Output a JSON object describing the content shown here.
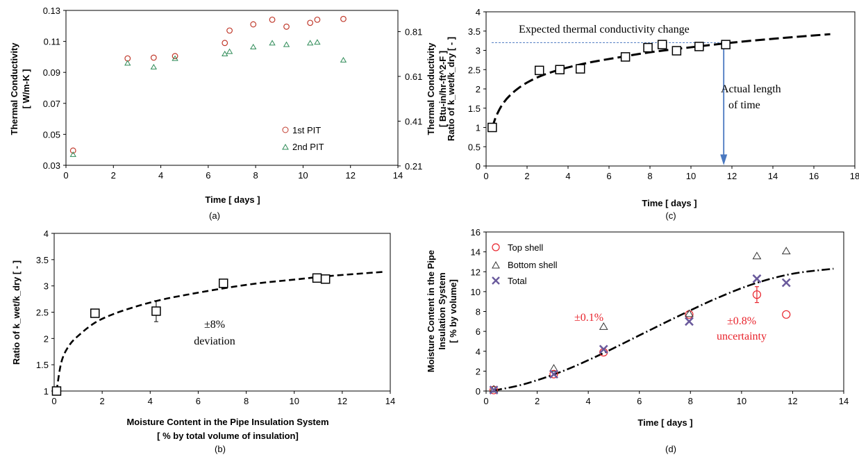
{
  "chart_data": [
    {
      "panel": "(a)",
      "type": "scatter",
      "xlabel": "Time [ days ]",
      "ylabel": "Thermal Conductivity [ W/m-K ]",
      "y2label": "Thermal Conductivity [ Btu-in/hr-ft^2-F ]",
      "xlim": [
        0,
        14
      ],
      "ylim": [
        0.03,
        0.13
      ],
      "xticks": [
        "0",
        "2",
        "4",
        "6",
        "8",
        "10",
        "12",
        "14"
      ],
      "yticks": [
        "0.03",
        "0.05",
        "0.07",
        "0.09",
        "0.11",
        "0.13"
      ],
      "y2ticks": [
        "0.21",
        "0.41",
        "0.61",
        "0.81"
      ],
      "legend_position": "bottom-right",
      "series": [
        {
          "name": "1st PIT",
          "marker": "circle",
          "color": "#c0392b",
          "x": [
            0.3,
            2.6,
            3.7,
            4.6,
            6.7,
            6.9,
            7.9,
            8.7,
            9.3,
            10.3,
            10.6,
            11.7
          ],
          "y": [
            0.0395,
            0.099,
            0.0995,
            0.1005,
            0.109,
            0.117,
            0.121,
            0.124,
            0.1195,
            0.122,
            0.124,
            0.1245
          ]
        },
        {
          "name": "2nd PIT",
          "marker": "triangle",
          "color": "#2e8b57",
          "x": [
            0.3,
            2.6,
            3.7,
            4.6,
            6.7,
            6.9,
            7.9,
            8.7,
            9.3,
            10.3,
            10.6,
            11.7
          ],
          "y": [
            0.037,
            0.096,
            0.0935,
            0.099,
            0.102,
            0.1035,
            0.1065,
            0.109,
            0.108,
            0.109,
            0.1095,
            0.098
          ]
        }
      ]
    },
    {
      "panel": "(b)",
      "type": "scatter",
      "xlabel": "Moisture Content in the Pipe Insulation System",
      "xlabel2": "[ % by  total volume  of insulation]",
      "ylabel": "Ratio of k_wet/k_dry [ - ]",
      "xlim": [
        0,
        14
      ],
      "ylim": [
        1,
        4
      ],
      "xticks": [
        "0",
        "2",
        "4",
        "6",
        "8",
        "10",
        "12",
        "14"
      ],
      "yticks": [
        "1",
        "1.5",
        "2",
        "2.5",
        "3",
        "3.5",
        "4"
      ],
      "annotation": [
        "±8%",
        "deviation"
      ],
      "points": {
        "marker": "square",
        "x": [
          0.1,
          1.7,
          4.25,
          7.05,
          10.95,
          11.3
        ],
        "y": [
          1.0,
          2.48,
          2.52,
          3.05,
          3.15,
          3.13
        ]
      },
      "error_bar": {
        "x": 4.25,
        "y": 2.52,
        "err": 0.2
      },
      "fit": {
        "style": "dashed",
        "x": [
          0.1,
          0.3,
          0.6,
          1.0,
          1.7,
          2.5,
          3.5,
          4.5,
          5.5,
          7.0,
          8.5,
          10.0,
          11.5,
          13.8
        ],
        "y": [
          1.0,
          1.55,
          1.85,
          2.05,
          2.3,
          2.47,
          2.62,
          2.74,
          2.83,
          2.95,
          3.05,
          3.12,
          3.19,
          3.27
        ]
      }
    },
    {
      "panel": "(c)",
      "type": "scatter",
      "xlabel": "Time [ days ]",
      "ylabel": "Ratio of k_wet/k_dry [ - ]",
      "xlim": [
        0,
        18
      ],
      "ylim": [
        0,
        4
      ],
      "xticks": [
        "0",
        "2",
        "4",
        "6",
        "8",
        "10",
        "12",
        "14",
        "16",
        "18"
      ],
      "yticks": [
        "0",
        "0.5",
        "1",
        "1.5",
        "2",
        "2.5",
        "3",
        "3.5",
        "4"
      ],
      "annotations": [
        "Expected thermal conductivity change",
        "Actual length",
        "of time"
      ],
      "reference_y": 3.2,
      "reference_x": 11.6,
      "points": {
        "marker": "square",
        "x": [
          0.3,
          2.6,
          3.6,
          4.6,
          6.8,
          7.9,
          8.6,
          9.3,
          10.4,
          11.7
        ],
        "y": [
          1.0,
          2.48,
          2.5,
          2.52,
          2.83,
          3.07,
          3.15,
          2.99,
          3.1,
          3.15
        ]
      },
      "fit": {
        "style": "dashed",
        "x": [
          0.3,
          0.5,
          0.8,
          1.2,
          1.8,
          2.6,
          3.6,
          5,
          6.5,
          8,
          10,
          12,
          14,
          16.8
        ],
        "y": [
          1.0,
          1.3,
          1.6,
          1.85,
          2.1,
          2.32,
          2.5,
          2.68,
          2.82,
          2.95,
          3.08,
          3.2,
          3.3,
          3.42
        ]
      }
    },
    {
      "panel": "(d)",
      "type": "scatter",
      "xlabel": "Time [ days ]",
      "ylabel": "Moisture Content in the Pipe Insulation System [ % by volume]",
      "xlim": [
        0,
        14
      ],
      "ylim": [
        0,
        16
      ],
      "xticks": [
        "0",
        "2",
        "4",
        "6",
        "8",
        "10",
        "12",
        "14"
      ],
      "yticks": [
        "0",
        "2",
        "4",
        "6",
        "8",
        "10",
        "12",
        "14",
        "16"
      ],
      "annotations": [
        "±0.1%",
        "±0.8%",
        "uncertainty"
      ],
      "legend_position": "top-left",
      "series": [
        {
          "name": "Top shell",
          "marker": "circle",
          "color": "#e8222b",
          "x": [
            0.3,
            2.65,
            4.6,
            7.95,
            10.6,
            11.75
          ],
          "y": [
            0.1,
            1.7,
            3.9,
            7.7,
            9.7,
            7.7
          ]
        },
        {
          "name": "Bottom shell",
          "marker": "triangle",
          "color": "#333333",
          "x": [
            0.3,
            2.65,
            4.6,
            7.95,
            10.6,
            11.75
          ],
          "y": [
            0.2,
            2.3,
            6.5,
            7.8,
            13.6,
            14.1
          ]
        },
        {
          "name": "Total",
          "marker": "x",
          "color": "#6a5a9c",
          "x": [
            0.3,
            2.65,
            4.6,
            7.95,
            10.6,
            11.75
          ],
          "y": [
            0.1,
            1.7,
            4.2,
            7.0,
            11.3,
            10.9
          ]
        }
      ],
      "error_bar": {
        "x": 10.6,
        "y": 9.7,
        "err": 0.8
      },
      "fit": {
        "style": "dash-dot",
        "x": [
          0.3,
          1.5,
          3,
          4.5,
          6,
          7.5,
          9,
          10.5,
          12,
          13.6
        ],
        "y": [
          0.05,
          0.7,
          2.0,
          3.7,
          5.6,
          7.5,
          9.3,
          10.8,
          11.8,
          12.3
        ]
      }
    }
  ]
}
